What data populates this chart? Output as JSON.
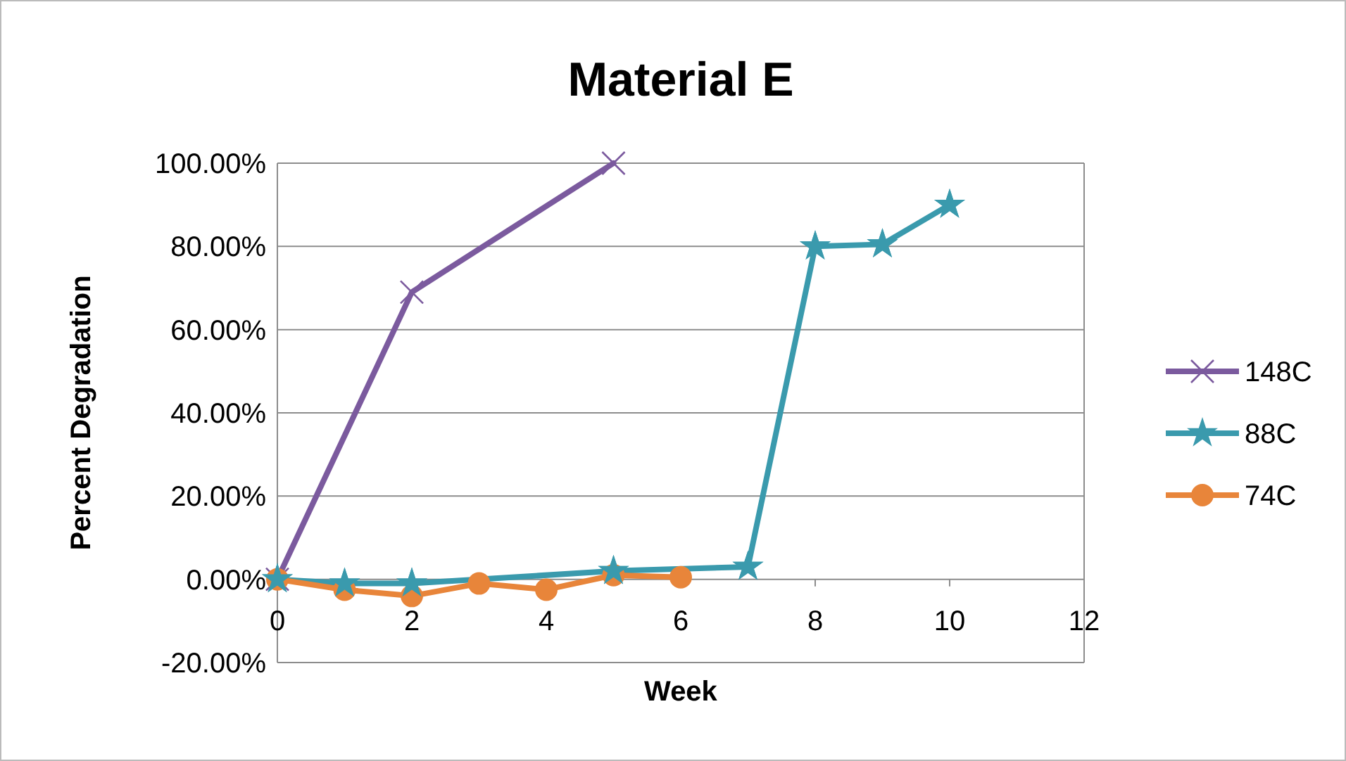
{
  "chart_data": {
    "type": "line",
    "title": "Material E",
    "xlabel": "Week",
    "ylabel": "Percent Degradation",
    "xlim": [
      0,
      12
    ],
    "xticks": [
      0,
      2,
      4,
      6,
      8,
      10,
      12
    ],
    "ylim": [
      -20,
      100
    ],
    "yticks": [
      {
        "value": -20,
        "label": "-20.00%"
      },
      {
        "value": 0,
        "label": "0.00%"
      },
      {
        "value": 20,
        "label": "20.00%"
      },
      {
        "value": 40,
        "label": "40.00%"
      },
      {
        "value": 60,
        "label": "60.00%"
      },
      {
        "value": 80,
        "label": "80.00%"
      },
      {
        "value": 100,
        "label": "100.00%"
      }
    ],
    "grid": "y",
    "legend": "right",
    "series": [
      {
        "name": "148C",
        "color": "#7b5a9e",
        "marker": "cross",
        "x": [
          0,
          2,
          5
        ],
        "values": [
          0,
          69,
          100
        ]
      },
      {
        "name": "88C",
        "color": "#3a9aad",
        "marker": "star",
        "x": [
          0,
          1,
          2,
          5,
          7,
          8,
          9,
          10
        ],
        "values": [
          0,
          -1,
          -1,
          2,
          3,
          80,
          80.5,
          90
        ]
      },
      {
        "name": "74C",
        "color": "#e8853a",
        "marker": "circle",
        "x": [
          0,
          1,
          2,
          3,
          4,
          5,
          6
        ],
        "values": [
          0,
          -2.5,
          -4,
          -1,
          -2.5,
          1,
          0.5
        ]
      }
    ]
  }
}
